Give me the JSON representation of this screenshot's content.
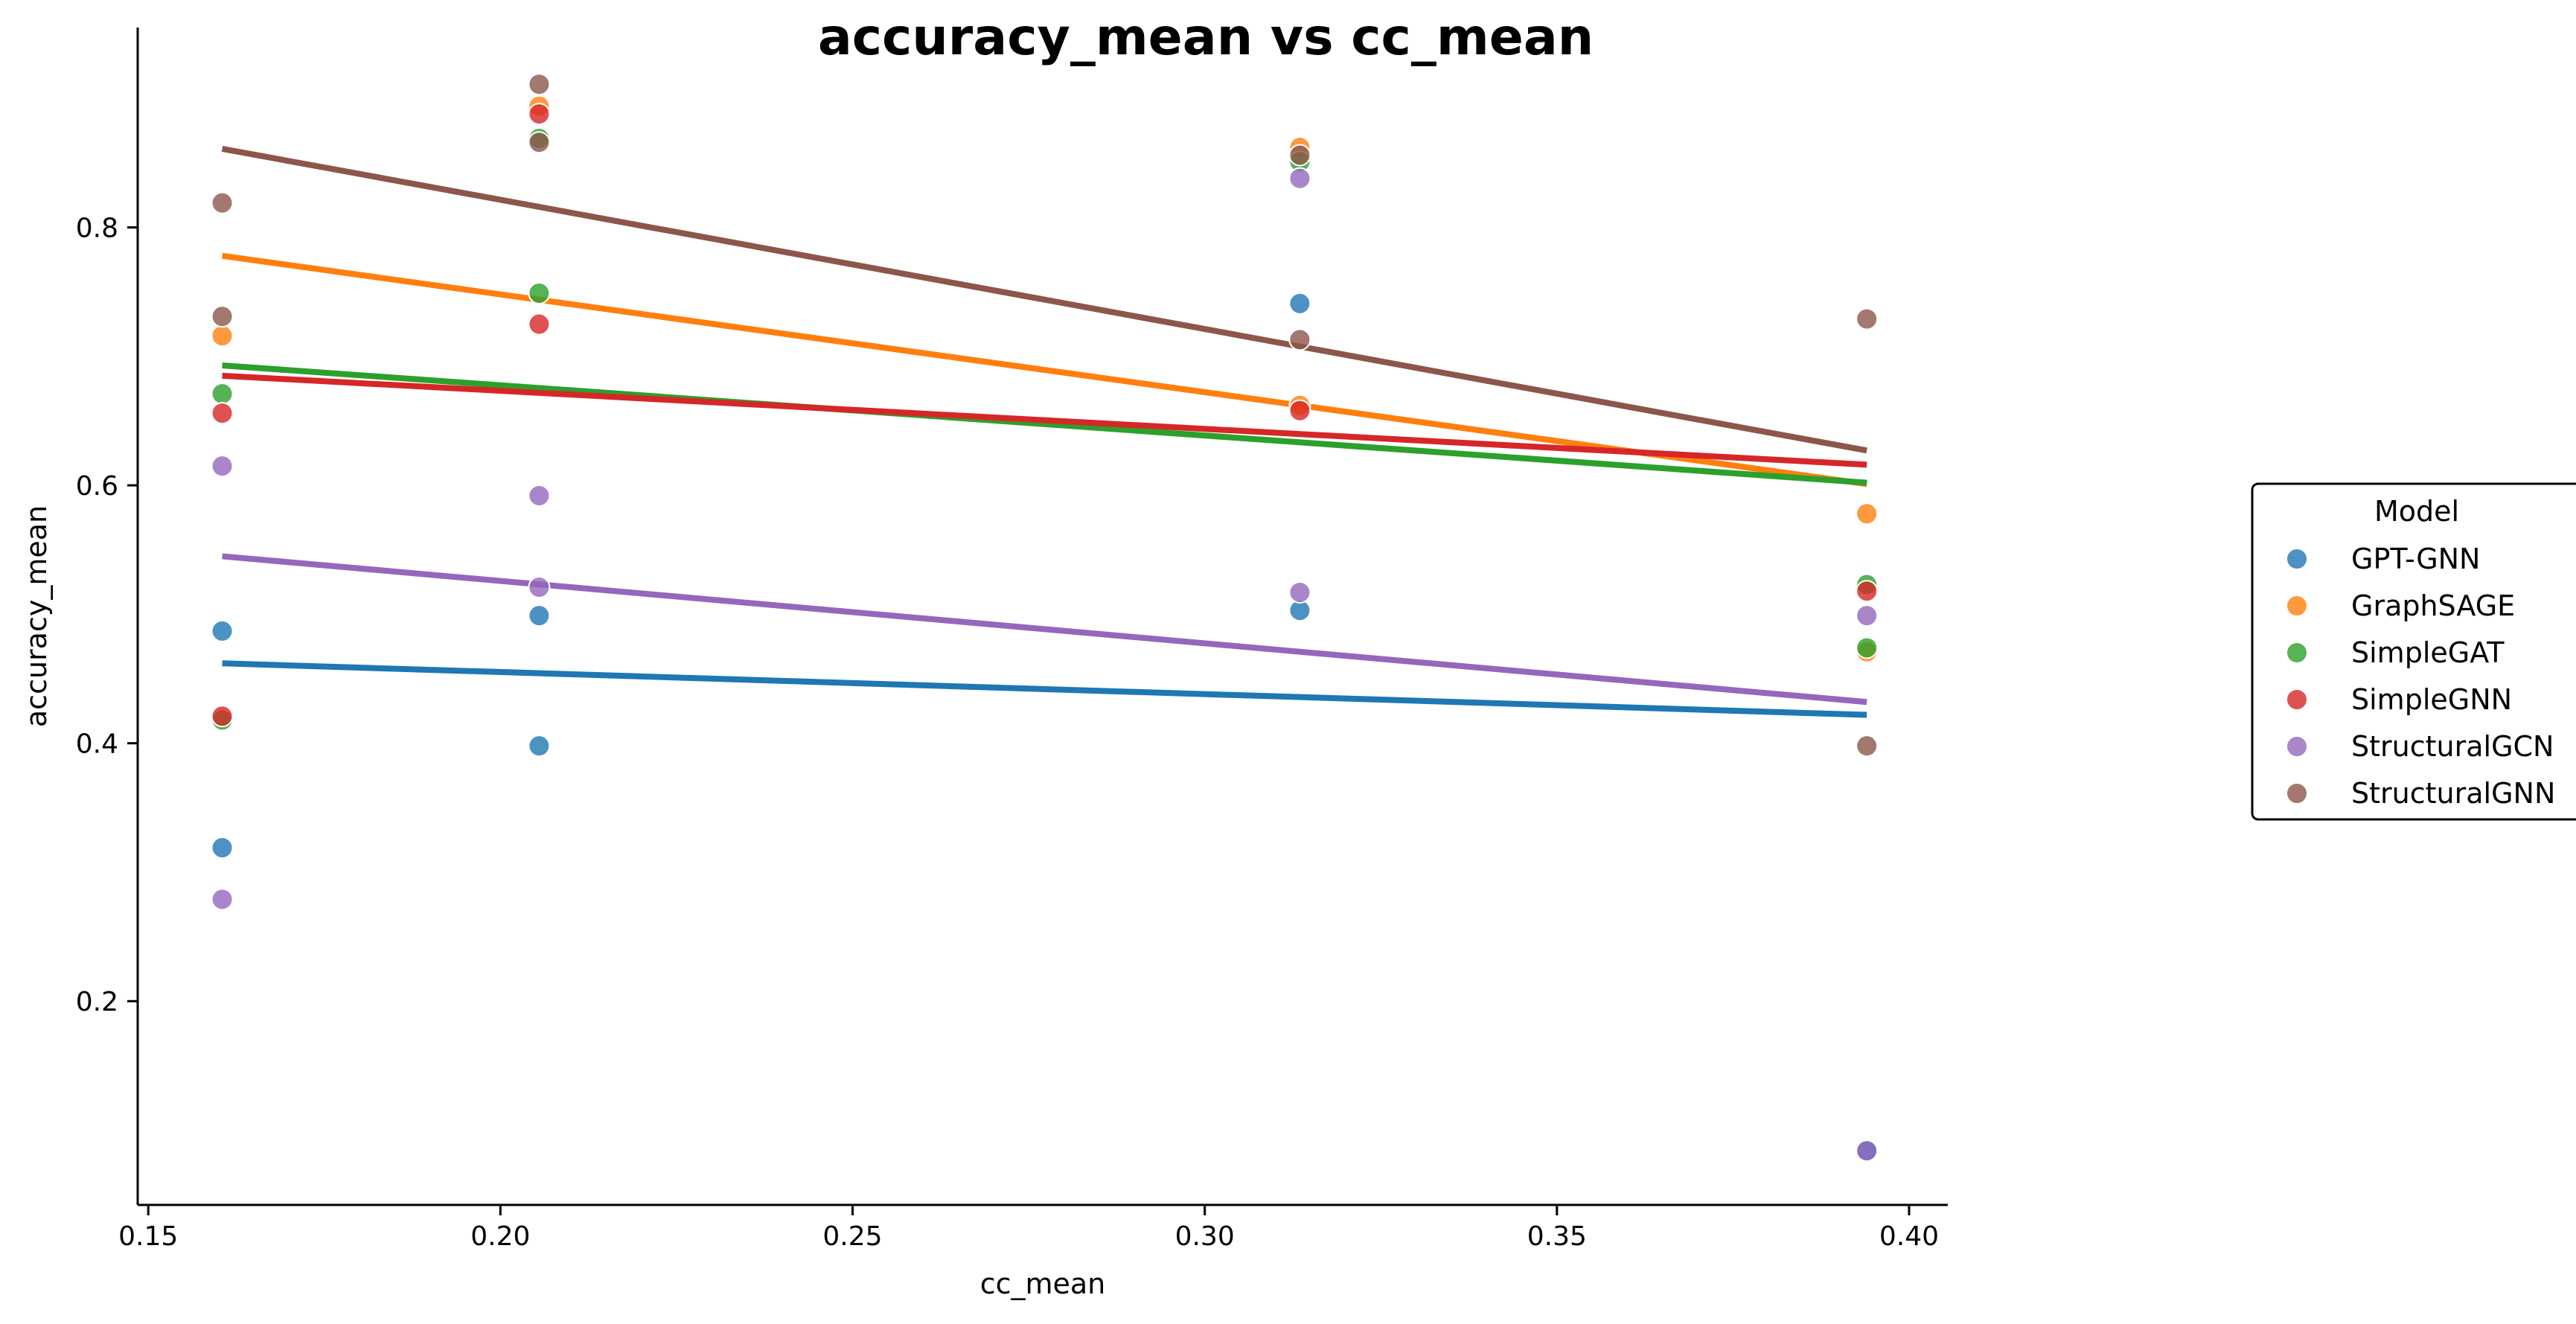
{
  "chart_data": {
    "type": "scatter",
    "title": "accuracy_mean vs cc_mean",
    "xlabel": "cc_mean",
    "ylabel": "accuracy_mean",
    "xlim": [
      0.1485,
      0.4055
    ],
    "ylim": [
      0.042,
      0.955
    ],
    "x_ticks": [
      0.15,
      0.2,
      0.25,
      0.3,
      0.35,
      0.4
    ],
    "x_tick_labels": [
      "0.15",
      "0.20",
      "0.25",
      "0.30",
      "0.35",
      "0.40"
    ],
    "y_ticks": [
      0.2,
      0.4,
      0.6,
      0.8
    ],
    "y_tick_labels": [
      "0.2",
      "0.4",
      "0.6",
      "0.8"
    ],
    "grid": false,
    "legend": {
      "title": "Model",
      "placement": "right-outside"
    },
    "series": [
      {
        "name": "GPT-GNN",
        "color": "#1f77b4",
        "points": [
          [
            0.1605,
            0.487
          ],
          [
            0.1605,
            0.319
          ],
          [
            0.2055,
            0.499
          ],
          [
            0.2055,
            0.398
          ],
          [
            0.3135,
            0.741
          ],
          [
            0.3135,
            0.503
          ],
          [
            0.394,
            0.084
          ]
        ],
        "fit": [
          [
            0.1605,
            0.462
          ],
          [
            0.394,
            0.422
          ]
        ]
      },
      {
        "name": "GraphSAGE",
        "color": "#ff7f0e",
        "points": [
          [
            0.1605,
            0.716
          ],
          [
            0.2055,
            0.894
          ],
          [
            0.3135,
            0.862
          ],
          [
            0.3135,
            0.662
          ],
          [
            0.394,
            0.578
          ],
          [
            0.394,
            0.471
          ]
        ],
        "fit": [
          [
            0.1605,
            0.778
          ],
          [
            0.394,
            0.601
          ]
        ]
      },
      {
        "name": "SimpleGAT",
        "color": "#2ca02c",
        "points": [
          [
            0.1605,
            0.671
          ],
          [
            0.1605,
            0.418
          ],
          [
            0.2055,
            0.869
          ],
          [
            0.2055,
            0.749
          ],
          [
            0.3135,
            0.851
          ],
          [
            0.394,
            0.523
          ],
          [
            0.394,
            0.474
          ]
        ],
        "fit": [
          [
            0.1605,
            0.693
          ],
          [
            0.394,
            0.602
          ]
        ]
      },
      {
        "name": "SimpleGNN",
        "color": "#d62728",
        "points": [
          [
            0.1605,
            0.656
          ],
          [
            0.1605,
            0.421
          ],
          [
            0.2055,
            0.888
          ],
          [
            0.2055,
            0.725
          ],
          [
            0.3135,
            0.658
          ],
          [
            0.394,
            0.518
          ]
        ],
        "fit": [
          [
            0.1605,
            0.685
          ],
          [
            0.394,
            0.616
          ]
        ]
      },
      {
        "name": "StructuralGCN",
        "color": "#9467bd",
        "points": [
          [
            0.1605,
            0.615
          ],
          [
            0.1605,
            0.279
          ],
          [
            0.2055,
            0.592
          ],
          [
            0.2055,
            0.521
          ],
          [
            0.3135,
            0.838
          ],
          [
            0.3135,
            0.517
          ],
          [
            0.394,
            0.499
          ],
          [
            0.394,
            0.084
          ]
        ],
        "fit": [
          [
            0.1605,
            0.545
          ],
          [
            0.394,
            0.432
          ]
        ]
      },
      {
        "name": "StructuralGNN",
        "color": "#8c564b",
        "points": [
          [
            0.1605,
            0.819
          ],
          [
            0.1605,
            0.731
          ],
          [
            0.2055,
            0.911
          ],
          [
            0.2055,
            0.866
          ],
          [
            0.3135,
            0.856
          ],
          [
            0.3135,
            0.713
          ],
          [
            0.394,
            0.729
          ],
          [
            0.394,
            0.398
          ]
        ],
        "fit": [
          [
            0.1605,
            0.861
          ],
          [
            0.394,
            0.627
          ]
        ]
      }
    ]
  }
}
